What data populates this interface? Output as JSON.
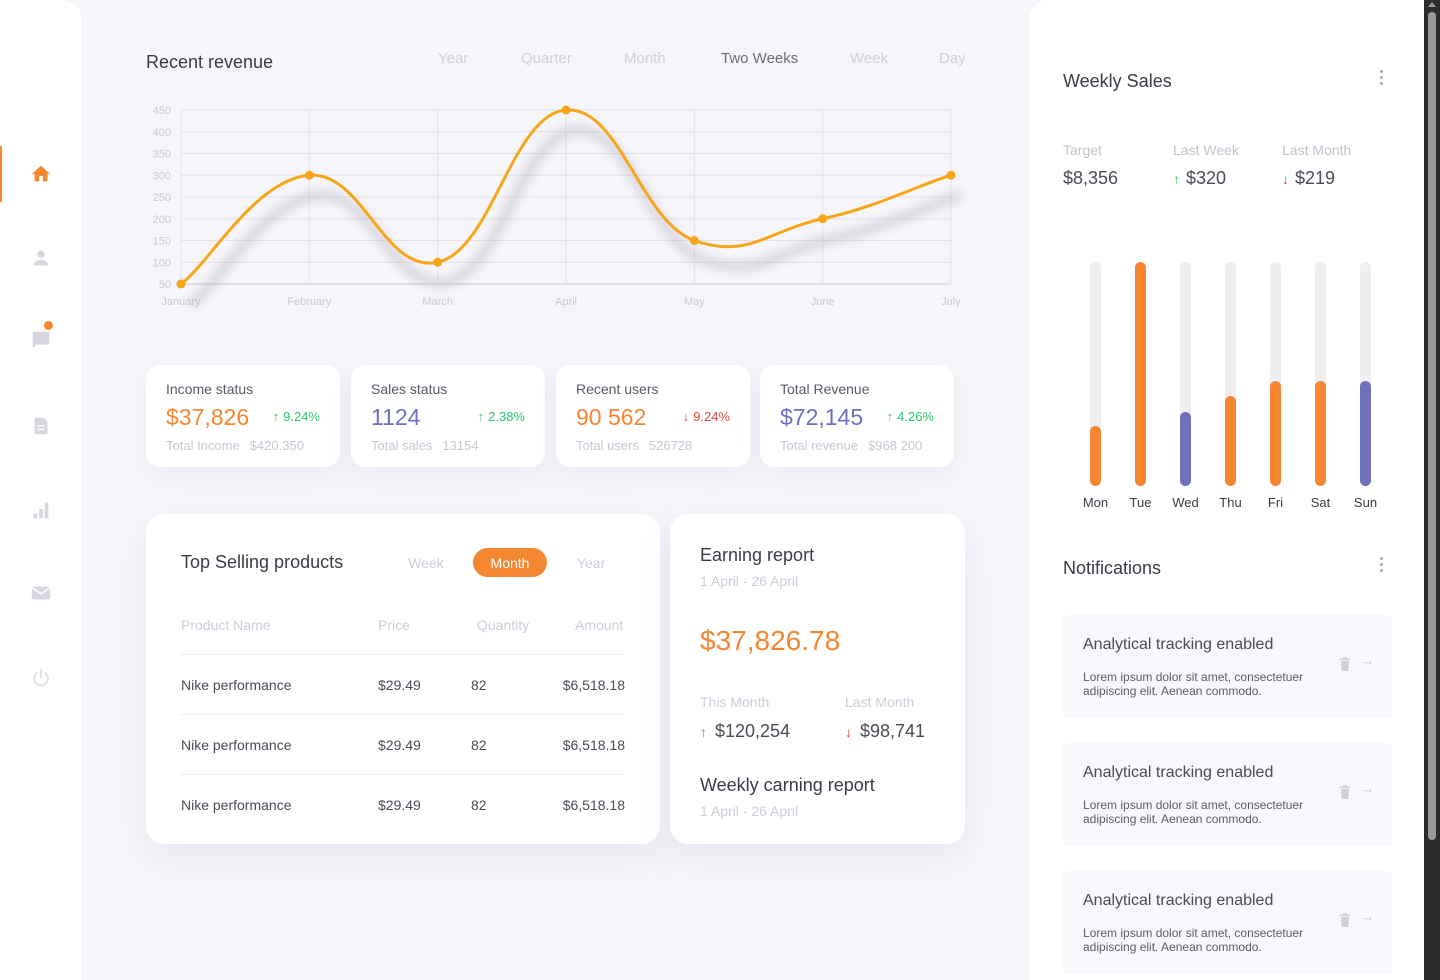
{
  "colors": {
    "accent": "#f58632",
    "purple": "#6f70bd",
    "up": "#2ec76a",
    "down": "#e2453c"
  },
  "sidebar": {
    "items": [
      {
        "icon": "home-icon",
        "active": true
      },
      {
        "icon": "user-icon",
        "active": false
      },
      {
        "icon": "chat-icon",
        "active": false,
        "badge": true
      },
      {
        "icon": "document-icon",
        "active": false
      },
      {
        "icon": "bar-chart-icon",
        "active": false
      },
      {
        "icon": "mail-icon",
        "active": false
      },
      {
        "icon": "power-icon",
        "active": false
      }
    ]
  },
  "revenue": {
    "title": "Recent revenue",
    "tabs": [
      "Year",
      "Quarter",
      "Month",
      "Two Weeks",
      "Week",
      "Day"
    ],
    "active_tab": "Two Weeks"
  },
  "chart_data": {
    "type": "line",
    "title": "Recent revenue",
    "xlabel": "",
    "ylabel": "",
    "categories": [
      "January",
      "February",
      "March",
      "April",
      "May",
      "June",
      "July"
    ],
    "series": [
      {
        "values": [
          50,
          300,
          100,
          450,
          150,
          200,
          300
        ]
      }
    ],
    "y_ticks": [
      50,
      100,
      150,
      200,
      250,
      300,
      350,
      400,
      450
    ],
    "ylim": [
      50,
      450
    ],
    "grid": true,
    "line_color": "#f7a61a"
  },
  "stats": [
    {
      "title": "Income status",
      "value": "$37,826",
      "value_color": "#f58632",
      "change": "9.24%",
      "direction": "up",
      "sub_label": "Total Income",
      "sub_value": "$420.350"
    },
    {
      "title": "Sales status",
      "value": "1124",
      "value_color": "#6f70bd",
      "change": "2.38%",
      "direction": "up",
      "sub_label": "Total sales",
      "sub_value": "13154"
    },
    {
      "title": "Recent users",
      "value": "90 562",
      "value_color": "#f58632",
      "change": "9.24%",
      "direction": "down",
      "sub_label": "Total users",
      "sub_value": "526728"
    },
    {
      "title": "Total Revenue",
      "value": "$72,145",
      "value_color": "#6f70bd",
      "change": "4.26%",
      "direction": "up",
      "sub_label": "Total revenue",
      "sub_value": "$968 200"
    }
  ],
  "top_selling": {
    "title": "Top Selling products",
    "tabs": [
      "Week",
      "Month",
      "Year"
    ],
    "active_tab": "Month",
    "columns": [
      "Product Name",
      "Price",
      "Quantity",
      "Amount"
    ],
    "rows": [
      [
        "Nike performance",
        "$29.49",
        "82",
        "$6,518.18"
      ],
      [
        "Nike performance",
        "$29.49",
        "82",
        "$6,518.18"
      ],
      [
        "Nike performance",
        "$29.49",
        "82",
        "$6,518.18"
      ]
    ]
  },
  "earning": {
    "title": "Earning report",
    "range": "1 April - 26 April",
    "amount": "$37,826.78",
    "this_month_label": "This Month",
    "this_month_value": "$120,254",
    "last_month_label": "Last Month",
    "last_month_value": "$98,741",
    "weekly_title": "Weekly carning report",
    "weekly_range": "1 April - 26 April"
  },
  "weekly_sales": {
    "title": "Weekly Sales",
    "target_label": "Target",
    "target_value": "$8,356",
    "last_week_label": "Last Week",
    "last_week_value": "$320",
    "last_month_label": "Last Month",
    "last_month_value": "$219",
    "days": [
      {
        "label": "Mon",
        "level": 0.27,
        "color": "#f58632"
      },
      {
        "label": "Tue",
        "level": 1.0,
        "color": "#f58632"
      },
      {
        "label": "Wed",
        "level": 0.33,
        "color": "#6f70bd"
      },
      {
        "label": "Thu",
        "level": 0.4,
        "color": "#f58632"
      },
      {
        "label": "Fri",
        "level": 0.47,
        "color": "#f58632"
      },
      {
        "label": "Sat",
        "level": 0.47,
        "color": "#f58632"
      },
      {
        "label": "Sun",
        "level": 0.47,
        "color": "#6f70bd"
      }
    ]
  },
  "notifications": {
    "title": "Notifications",
    "items": [
      {
        "title": "Analytical tracking enabled",
        "body": "Lorem ipsum dolor sit amet, consectetuer adipiscing elit. Aenean commodo."
      },
      {
        "title": "Analytical tracking enabled",
        "body": "Lorem ipsum dolor sit amet, consectetuer adipiscing elit. Aenean commodo."
      },
      {
        "title": "Analytical tracking enabled",
        "body": "Lorem ipsum dolor sit amet, consectetuer adipiscing elit. Aenean commodo."
      }
    ]
  }
}
